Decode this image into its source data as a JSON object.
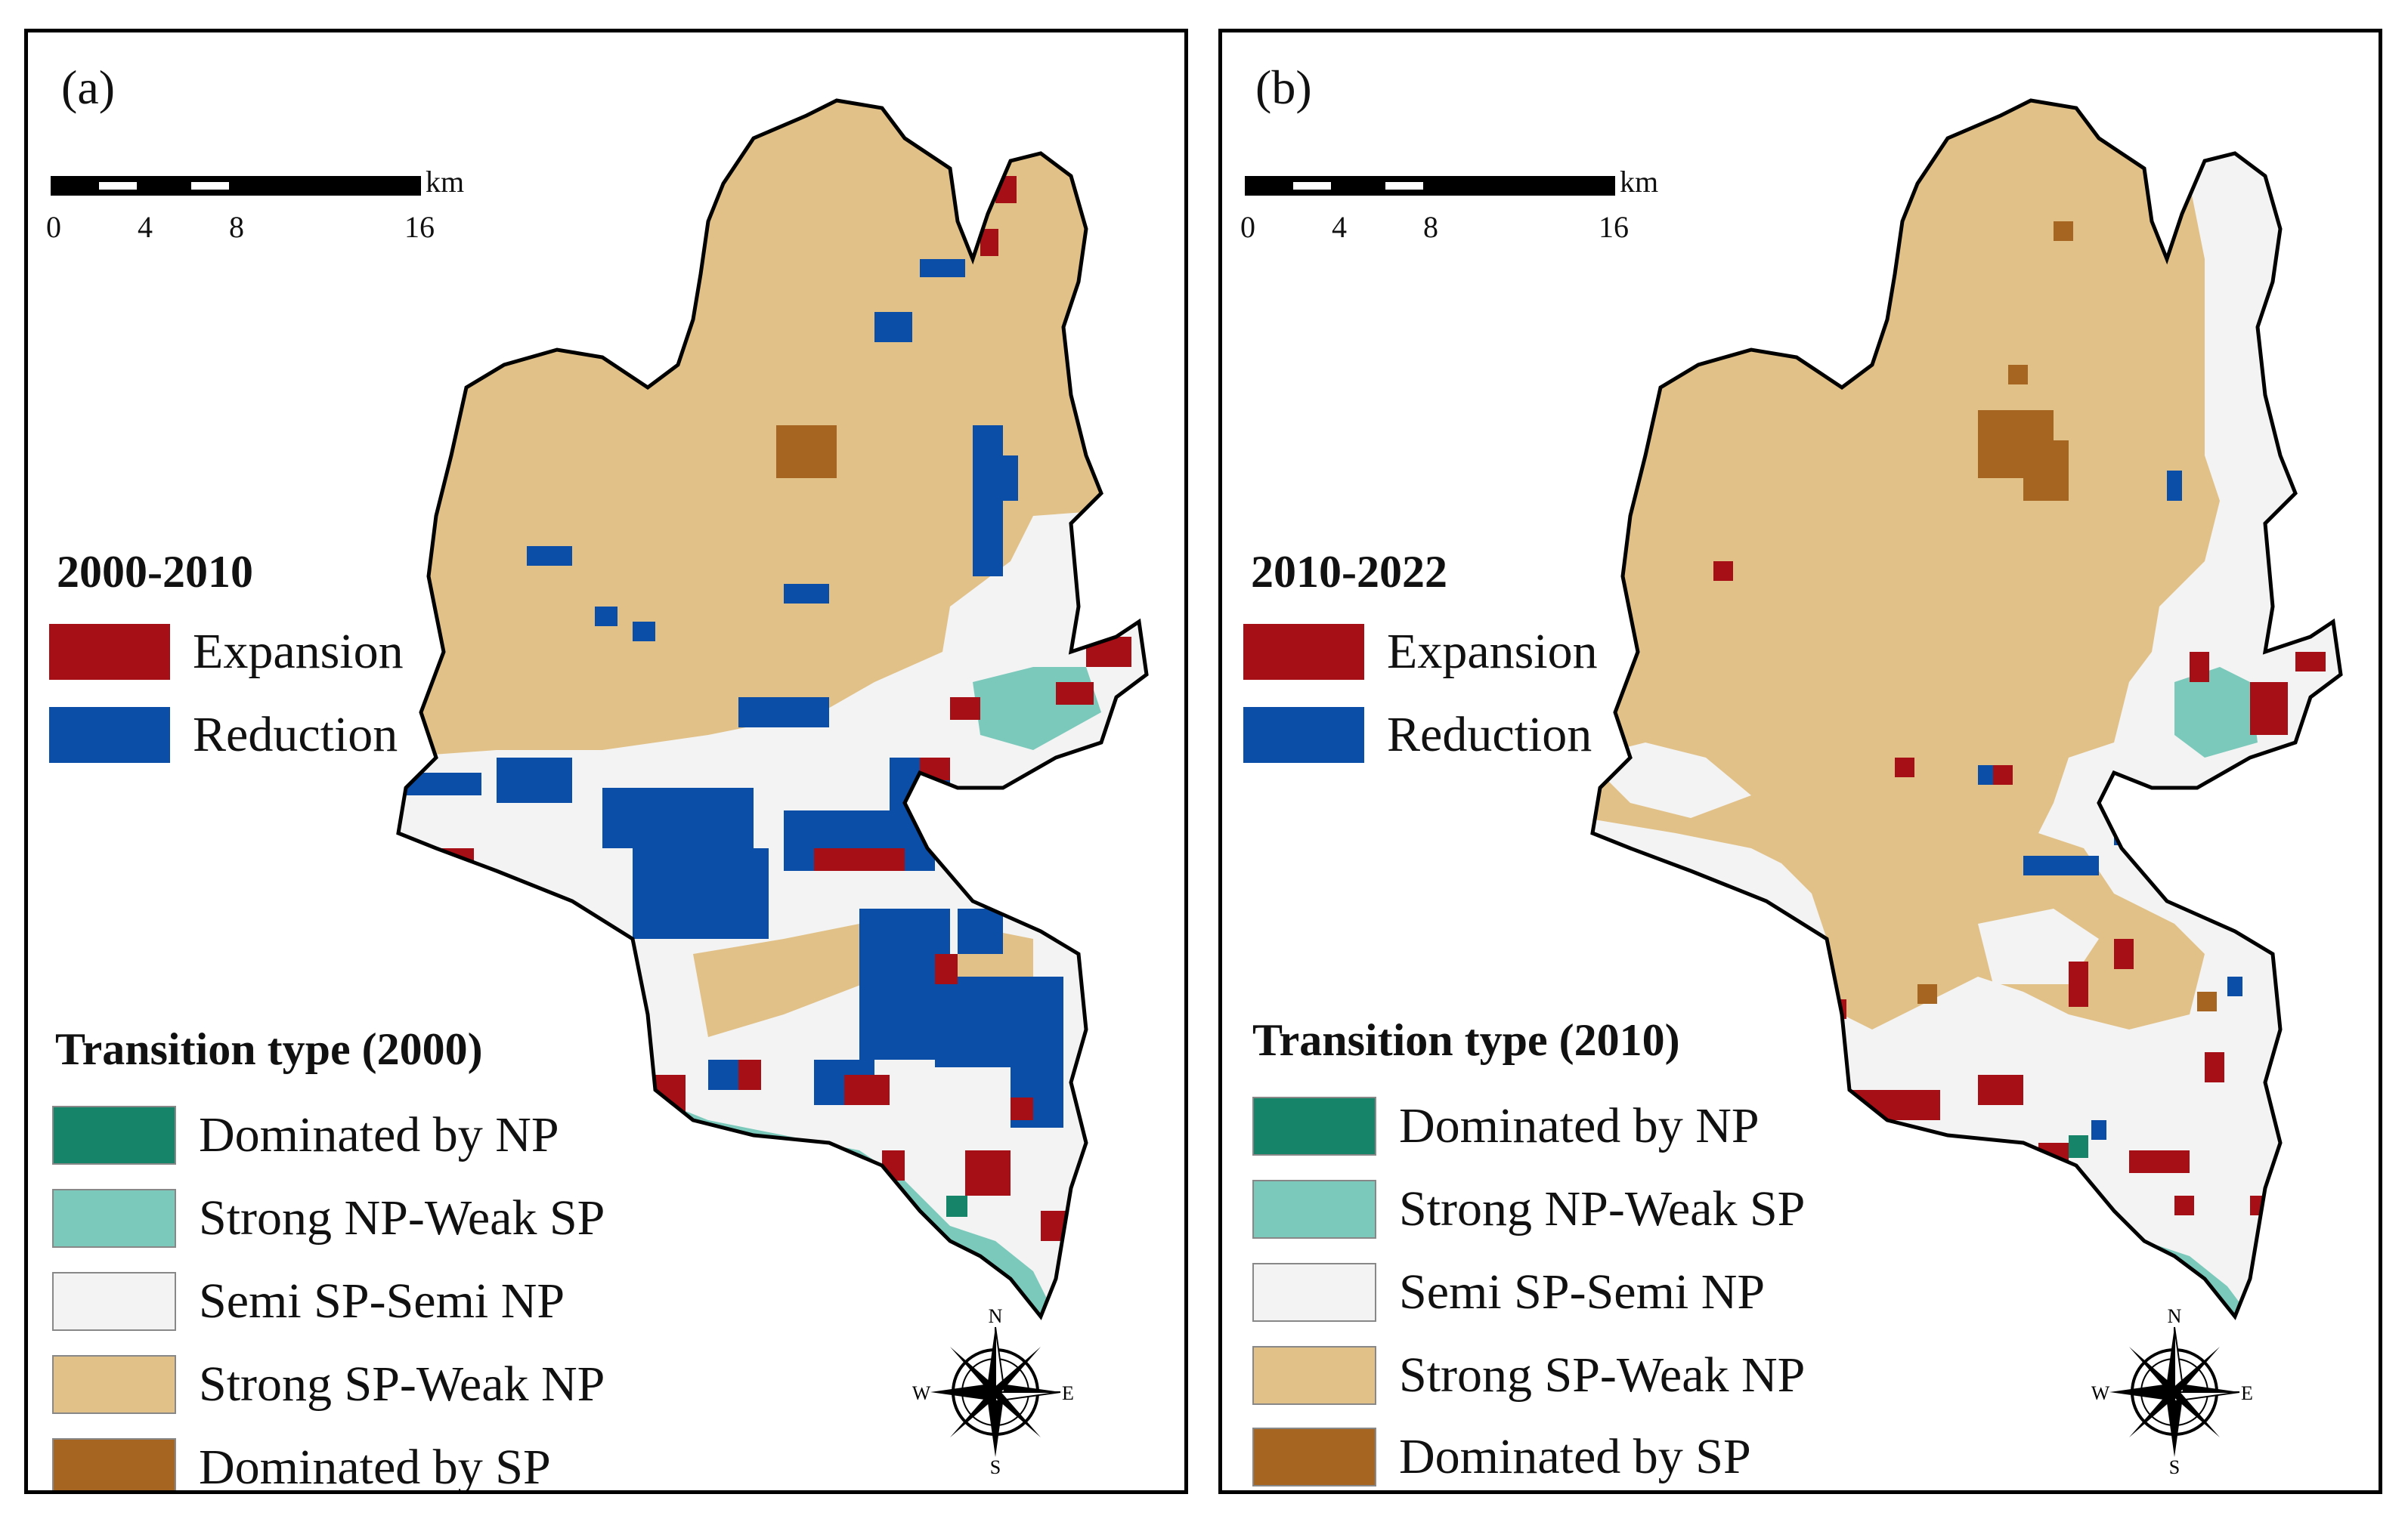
{
  "colors": {
    "expansion": "#a50f15",
    "reduction": "#0a4ea8",
    "dominated_np": "#168468",
    "strong_np_weak_sp": "#7bc9bb",
    "semi_sp_semi_np": "#f3f3f3",
    "strong_sp_weak_np": "#e1c188",
    "dominated_sp": "#a66521"
  },
  "scalebar": {
    "ticks": [
      "0",
      "4",
      "8",
      "16"
    ],
    "unit": "km"
  },
  "compass": {
    "n": "N",
    "s": "S",
    "e": "E",
    "w": "W"
  },
  "panels": [
    {
      "label": "(a)",
      "period": "2000-2010",
      "change_legend": [
        {
          "label": "Expansion",
          "color": "#a50f15"
        },
        {
          "label": "Reduction",
          "color": "#0a4ea8"
        }
      ],
      "transition_title": "Transition type (2000)",
      "transition_legend": [
        {
          "label": "Dominated by NP",
          "color": "#168468"
        },
        {
          "label": "Strong NP-Weak SP",
          "color": "#7bc9bb"
        },
        {
          "label": "Semi SP-Semi NP",
          "color": "#f3f3f3"
        },
        {
          "label": "Strong SP-Weak NP",
          "color": "#e1c188"
        },
        {
          "label": "Dominated by SP",
          "color": "#a66521"
        }
      ]
    },
    {
      "label": "(b)",
      "period": "2010-2022",
      "change_legend": [
        {
          "label": "Expansion",
          "color": "#a50f15"
        },
        {
          "label": "Reduction",
          "color": "#0a4ea8"
        }
      ],
      "transition_title": "Transition type (2010)",
      "transition_legend": [
        {
          "label": "Dominated by NP",
          "color": "#168468"
        },
        {
          "label": "Strong NP-Weak SP",
          "color": "#7bc9bb"
        },
        {
          "label": "Semi SP-Semi NP",
          "color": "#f3f3f3"
        },
        {
          "label": "Strong SP-Weak NP",
          "color": "#e1c188"
        },
        {
          "label": "Dominated by SP",
          "color": "#a66521"
        }
      ]
    }
  ]
}
